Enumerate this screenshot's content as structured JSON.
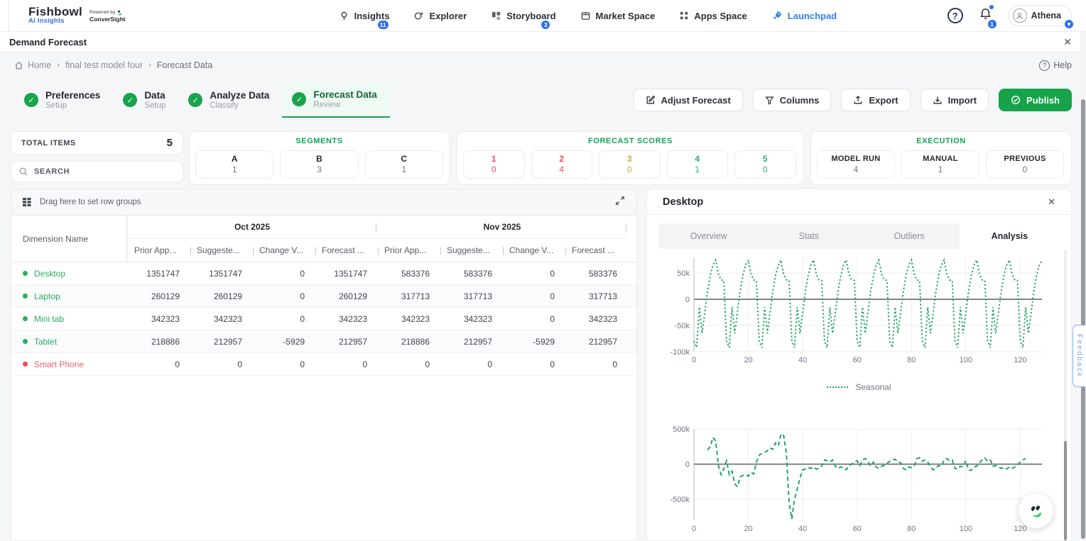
{
  "navbar": {
    "brand": {
      "name": "Fishbowl",
      "sub": "AI Insights",
      "powered_by": "Powered by",
      "powered_name": "ConverSight"
    },
    "items": [
      {
        "label": "Insights",
        "badge": "11"
      },
      {
        "label": "Explorer",
        "badge": ""
      },
      {
        "label": "Storyboard",
        "badge": "3"
      },
      {
        "label": "Market Space",
        "badge": ""
      },
      {
        "label": "Apps Space",
        "badge": ""
      },
      {
        "label": "Launchpad",
        "badge": ""
      }
    ],
    "help_symbol": "?",
    "notification_count": "1",
    "user": {
      "name": "Athena"
    }
  },
  "page": {
    "title": "Demand Forecast",
    "close_symbol": "✕"
  },
  "breadcrumb": {
    "home": "Home",
    "model": "final test model four",
    "current": "Forecast Data",
    "separator": "›",
    "help_label": "Help",
    "help_symbol": "?"
  },
  "stepper": [
    {
      "title": "Preferences",
      "subtitle": "Setup"
    },
    {
      "title": "Data",
      "subtitle": "Setup"
    },
    {
      "title": "Analyze Data",
      "subtitle": "Classify"
    },
    {
      "title": "Forecast Data",
      "subtitle": "Review"
    }
  ],
  "toolbar": {
    "adjust_label": "Adjust Forecast",
    "columns_label": "Columns",
    "export_label": "Export",
    "import_label": "Import",
    "publish_label": "Publish"
  },
  "summary": {
    "total": {
      "label": "TOTAL ITEMS",
      "value": "5"
    },
    "search_placeholder": "SEARCH",
    "segments": {
      "title": "SEGMENTS",
      "items": [
        {
          "label": "A",
          "value": "1"
        },
        {
          "label": "B",
          "value": "3"
        },
        {
          "label": "C",
          "value": "1"
        }
      ]
    },
    "forecast_scores": {
      "title": "FORECAST SCORES",
      "items": [
        {
          "label": "1",
          "value": "0",
          "color": "#e8505b"
        },
        {
          "label": "2",
          "value": "4",
          "color": "#e8505b"
        },
        {
          "label": "3",
          "value": "0",
          "color": "#dfa62f"
        },
        {
          "label": "4",
          "value": "1",
          "color": "#2fae6e"
        },
        {
          "label": "5",
          "value": "0",
          "color": "#2fae6e"
        }
      ]
    },
    "execution": {
      "title": "EXECUTION",
      "items": [
        {
          "label": "MODEL RUN",
          "value": "4"
        },
        {
          "label": "MANUAL",
          "value": "1"
        },
        {
          "label": "PREVIOUS",
          "value": "0"
        }
      ]
    }
  },
  "table": {
    "drag_hint": "Drag here to set row groups",
    "dimension_header": "Dimension Name",
    "groups": [
      "Oct 2025",
      "Nov 2025"
    ],
    "sub_headers": [
      "Prior App...",
      "Suggeste...",
      "Change V...",
      "Forecast ..."
    ],
    "rows": [
      {
        "name": "Desktop",
        "status": "green",
        "values": [
          "1351747",
          "1351747",
          "0",
          "1351747",
          "583376",
          "583376",
          "0",
          "583376"
        ]
      },
      {
        "name": "Laptop",
        "status": "green",
        "values": [
          "260129",
          "260129",
          "0",
          "260129",
          "317713",
          "317713",
          "0",
          "317713"
        ]
      },
      {
        "name": "Mini tab",
        "status": "green",
        "values": [
          "342323",
          "342323",
          "0",
          "342323",
          "342323",
          "342323",
          "0",
          "342323"
        ]
      },
      {
        "name": "Tablet",
        "status": "green",
        "values": [
          "218886",
          "212957",
          "-5929",
          "212957",
          "218886",
          "212957",
          "-5929",
          "212957"
        ]
      },
      {
        "name": "Smart Phone",
        "status": "red",
        "values": [
          "0",
          "0",
          "0",
          "0",
          "0",
          "0",
          "0",
          "0"
        ]
      }
    ]
  },
  "panel": {
    "title": "Desktop",
    "close_symbol": "✕",
    "tabs": [
      {
        "label": "Overview"
      },
      {
        "label": "Stats"
      },
      {
        "label": "Outliers"
      },
      {
        "label": "Analysis"
      }
    ],
    "feedback_label": "Feedback"
  },
  "chart_data": [
    {
      "type": "line",
      "name": "seasonal-component",
      "legend": "Seasonal",
      "line_color": "#1ca35a",
      "line_style": "dotted",
      "x_range": [
        0,
        128
      ],
      "x_step": 1,
      "xticks": [
        0,
        20,
        40,
        60,
        80,
        100,
        120
      ],
      "ylim": [
        -100000,
        80000
      ],
      "yticks": [
        {
          "v": 50000,
          "label": "50k"
        },
        {
          "v": 0,
          "label": "0"
        },
        {
          "v": -50000,
          "label": "-50k"
        },
        {
          "v": -100000,
          "label": "-100k"
        }
      ],
      "seasonal_cycle_thousands": [
        -80,
        -92,
        -15,
        -65,
        -25,
        15,
        45,
        65,
        75,
        48,
        37,
        36
      ],
      "note": "y = cycle[x mod 12] * 1000, repeated over x 0..128"
    },
    {
      "type": "line",
      "name": "residual-component",
      "legend": "",
      "line_color": "#1ca35a",
      "line_style": "dashed",
      "x_range": [
        0,
        128
      ],
      "xticks": [
        0,
        20,
        40,
        60,
        80,
        100,
        120
      ],
      "ylim": [
        -800000,
        500000
      ],
      "yticks": [
        {
          "v": 500000,
          "label": "500k"
        },
        {
          "v": 0,
          "label": "0"
        },
        {
          "v": -500000,
          "label": "-500k"
        }
      ],
      "points_thousands": [
        [
          5,
          200
        ],
        [
          6,
          250
        ],
        [
          7,
          380
        ],
        [
          8,
          330
        ],
        [
          9,
          -20
        ],
        [
          10,
          -150
        ],
        [
          11,
          -60
        ],
        [
          12,
          50
        ],
        [
          13,
          -150
        ],
        [
          14,
          -100
        ],
        [
          15,
          -280
        ],
        [
          16,
          -320
        ],
        [
          17,
          -180
        ],
        [
          18,
          -160
        ],
        [
          19,
          -150
        ],
        [
          20,
          -170
        ],
        [
          21,
          -120
        ],
        [
          22,
          -140
        ],
        [
          23,
          30
        ],
        [
          24,
          130
        ],
        [
          25,
          150
        ],
        [
          26,
          170
        ],
        [
          27,
          190
        ],
        [
          28,
          230
        ],
        [
          29,
          210
        ],
        [
          30,
          300
        ],
        [
          31,
          260
        ],
        [
          32,
          430
        ],
        [
          33,
          410
        ],
        [
          34,
          150
        ],
        [
          35,
          -550
        ],
        [
          36,
          -780
        ],
        [
          37,
          -500
        ],
        [
          38,
          -350
        ],
        [
          39,
          -200
        ],
        [
          40,
          -80
        ],
        [
          41,
          -70
        ],
        [
          42,
          -50
        ],
        [
          43,
          -60
        ],
        [
          44,
          -40
        ],
        [
          45,
          -70
        ],
        [
          46,
          -60
        ],
        [
          47,
          -30
        ],
        [
          48,
          60
        ],
        [
          49,
          50
        ],
        [
          50,
          30
        ],
        [
          51,
          60
        ],
        [
          52,
          -30
        ],
        [
          53,
          -60
        ],
        [
          54,
          -40
        ],
        [
          55,
          -50
        ],
        [
          56,
          -80
        ],
        [
          57,
          -20
        ],
        [
          58,
          0
        ],
        [
          59,
          30
        ],
        [
          60,
          50
        ],
        [
          61,
          -20
        ],
        [
          62,
          60
        ],
        [
          63,
          80
        ],
        [
          64,
          40
        ],
        [
          65,
          -30
        ],
        [
          66,
          30
        ],
        [
          67,
          -40
        ],
        [
          68,
          -60
        ],
        [
          69,
          -30
        ],
        [
          70,
          -20
        ],
        [
          71,
          10
        ],
        [
          72,
          40
        ],
        [
          73,
          60
        ],
        [
          74,
          70
        ],
        [
          75,
          30
        ],
        [
          76,
          20
        ],
        [
          77,
          -60
        ],
        [
          78,
          -80
        ],
        [
          79,
          -40
        ],
        [
          80,
          -50
        ],
        [
          81,
          -30
        ],
        [
          82,
          80
        ],
        [
          83,
          90
        ],
        [
          84,
          40
        ],
        [
          85,
          60
        ],
        [
          86,
          30
        ],
        [
          87,
          -40
        ],
        [
          88,
          -80
        ],
        [
          89,
          -50
        ],
        [
          90,
          -20
        ],
        [
          91,
          -30
        ],
        [
          92,
          60
        ],
        [
          93,
          80
        ],
        [
          94,
          50
        ],
        [
          95,
          60
        ],
        [
          96,
          -60
        ],
        [
          97,
          -70
        ],
        [
          98,
          -30
        ],
        [
          99,
          -40
        ],
        [
          100,
          50
        ],
        [
          101,
          -80
        ],
        [
          102,
          -90
        ],
        [
          103,
          -40
        ],
        [
          104,
          -30
        ],
        [
          105,
          20
        ],
        [
          106,
          60
        ],
        [
          107,
          90
        ],
        [
          108,
          40
        ],
        [
          109,
          60
        ],
        [
          110,
          -30
        ],
        [
          111,
          -20
        ],
        [
          112,
          -40
        ],
        [
          113,
          -60
        ],
        [
          114,
          -50
        ],
        [
          115,
          -70
        ],
        [
          116,
          -40
        ],
        [
          117,
          -60
        ],
        [
          118,
          -40
        ],
        [
          119,
          -20
        ],
        [
          120,
          30
        ],
        [
          121,
          60
        ],
        [
          122,
          80
        ]
      ]
    }
  ]
}
